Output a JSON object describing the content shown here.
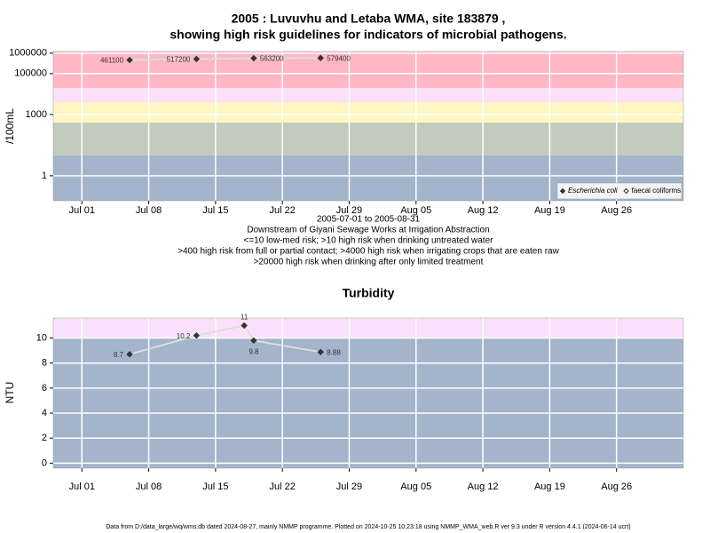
{
  "chart_data": [
    {
      "type": "line",
      "title": [
        "2005 : Luvuvhu and Letaba WMA, site 183879 ,",
        "showing high risk guidelines for indicators of microbial pathogens."
      ],
      "ylabel": "/100mL",
      "log_y": true,
      "grid": true,
      "x": [
        "2005-07-06",
        "2005-07-13",
        "2005-07-19",
        "2005-07-26"
      ],
      "series": [
        {
          "name": "Escherichia coli",
          "color": "#333333",
          "marker": "filled",
          "values": [
            461100,
            517200,
            563200,
            579400
          ]
        },
        {
          "name": "faecal coliforms",
          "color": "#333333",
          "marker": "open",
          "values": [
            null,
            null,
            null,
            null
          ]
        }
      ],
      "line_color": "#dddddd",
      "xlim": [
        "2005-06-28",
        "2005-09-02"
      ],
      "xticks": [
        {
          "value": "2005-07-01",
          "label": "Jul 01"
        },
        {
          "value": "2005-07-08",
          "label": "Jul 08"
        },
        {
          "value": "2005-07-15",
          "label": "Jul 15"
        },
        {
          "value": "2005-07-22",
          "label": "Jul 22"
        },
        {
          "value": "2005-07-29",
          "label": "Jul 29"
        },
        {
          "value": "2005-08-05",
          "label": "Aug 05"
        },
        {
          "value": "2005-08-12",
          "label": "Aug 12"
        },
        {
          "value": "2005-08-19",
          "label": "Aug 19"
        },
        {
          "value": "2005-08-26",
          "label": "Aug 26"
        }
      ],
      "ylim": [
        0.06,
        1200000
      ],
      "yticks": [
        1,
        1000,
        100000,
        1000000
      ],
      "bands": [
        {
          "from": 0.06,
          "to": 10,
          "color": "#a3b4cb"
        },
        {
          "from": 10,
          "to": 400,
          "color": "#c3cbbf"
        },
        {
          "from": 400,
          "to": 4000,
          "color": "#fff6c4"
        },
        {
          "from": 4000,
          "to": 20000,
          "color": "#fbe0f8"
        },
        {
          "from": 20000,
          "to": 1200000,
          "color": "#ffb7c3"
        }
      ],
      "legend": "bottom-right",
      "notes": [
        "2005-07-01 to 2005-08-31",
        "Downstream of Giyani Sewage Works at Irrigation Abstraction",
        "<=10 low-med risk; >10 high risk when drinking untreated water",
        ">400 high risk from full or partial contact; >4000 high risk when irrigating crops that are eaten raw",
        ">20000 high risk when drinking after only limited treatment"
      ]
    },
    {
      "type": "line",
      "title": "Turbidity",
      "ylabel": "NTU",
      "log_y": false,
      "grid": true,
      "x": [
        "2005-07-06",
        "2005-07-13",
        "2005-07-18",
        "2005-07-19",
        "2005-07-26"
      ],
      "series": [
        {
          "name": "Turbidity",
          "color": "#333333",
          "marker": "filled",
          "values": [
            8.7,
            10.2,
            11,
            9.8,
            8.88
          ]
        }
      ],
      "line_color": "#dddddd",
      "xlim": [
        "2005-06-28",
        "2005-09-02"
      ],
      "xticks": [
        {
          "value": "2005-07-01",
          "label": "Jul 01"
        },
        {
          "value": "2005-07-08",
          "label": "Jul 08"
        },
        {
          "value": "2005-07-15",
          "label": "Jul 15"
        },
        {
          "value": "2005-07-22",
          "label": "Jul 22"
        },
        {
          "value": "2005-07-29",
          "label": "Jul 29"
        },
        {
          "value": "2005-08-05",
          "label": "Aug 05"
        },
        {
          "value": "2005-08-12",
          "label": "Aug 12"
        },
        {
          "value": "2005-08-19",
          "label": "Aug 19"
        },
        {
          "value": "2005-08-26",
          "label": "Aug 26"
        }
      ],
      "ylim": [
        -0.4,
        11.6
      ],
      "yticks": [
        0,
        2,
        4,
        6,
        8,
        10
      ],
      "bands": [
        {
          "from": -0.4,
          "to": 10,
          "color": "#a3b4cb"
        },
        {
          "from": 10,
          "to": 11.6,
          "color": "#fbe0fb"
        }
      ]
    }
  ],
  "footer": "Data from D:/data_large/wq/wms.db dated 2024-08-27, mainly NMMP programme. Plotted on 2024-10-25 10:23:18 using NMMP_WMA_web.R ver 9.3 under R version 4.4.1 (2024-06-14 ucrt)"
}
